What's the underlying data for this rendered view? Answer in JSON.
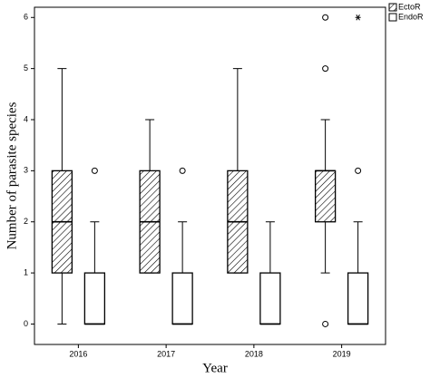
{
  "chart_data": {
    "type": "box",
    "x_label": "Year",
    "y_label": "Number of parasite species",
    "categories": [
      "2016",
      "2017",
      "2018",
      "2019"
    ],
    "ylim": [
      -0.4,
      6.2
    ],
    "yticks": [
      0,
      1,
      2,
      3,
      4,
      5,
      6
    ],
    "series": [
      {
        "name": "EctoR",
        "fill": "hatch",
        "boxes": [
          {
            "min": 0,
            "q1": 1,
            "median": 2,
            "q3": 3,
            "max": 5,
            "outliers": [],
            "extremes": []
          },
          {
            "min": 1,
            "q1": 1,
            "median": 2,
            "q3": 3,
            "max": 4,
            "outliers": [],
            "extremes": []
          },
          {
            "min": 1,
            "q1": 1,
            "median": 2,
            "q3": 3,
            "max": 5,
            "outliers": [],
            "extremes": []
          },
          {
            "min": 1,
            "q1": 2,
            "median": 3,
            "q3": 3,
            "max": 4,
            "outliers": [
              0,
              5,
              6
            ],
            "extremes": []
          }
        ]
      },
      {
        "name": "EndoR",
        "fill": "white",
        "boxes": [
          {
            "min": 0,
            "q1": 0,
            "median": 0,
            "q3": 1,
            "max": 2,
            "outliers": [
              3
            ],
            "extremes": []
          },
          {
            "min": 0,
            "q1": 0,
            "median": 0,
            "q3": 1,
            "max": 2,
            "outliers": [
              3
            ],
            "extremes": []
          },
          {
            "min": 0,
            "q1": 0,
            "median": 0,
            "q3": 1,
            "max": 2,
            "outliers": [],
            "extremes": []
          },
          {
            "min": 0,
            "q1": 0,
            "median": 0,
            "q3": 1,
            "max": 2,
            "outliers": [
              3
            ],
            "extremes": [
              6
            ]
          }
        ]
      }
    ]
  }
}
